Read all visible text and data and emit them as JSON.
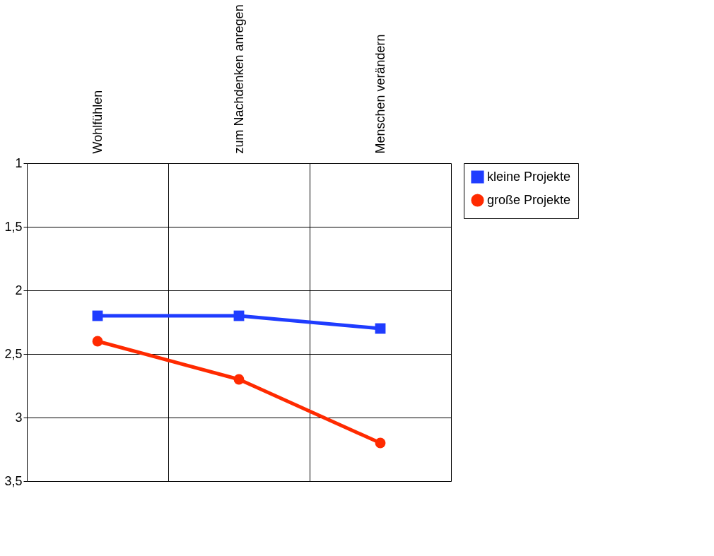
{
  "chart_data": {
    "type": "line",
    "categories": [
      "Wohlfühlen",
      "zum Nachdenken anregen",
      "Menschen verändern"
    ],
    "series": [
      {
        "name": "kleine Projekte",
        "color": "#1f3cff",
        "marker": "square",
        "values": [
          2.2,
          2.2,
          2.3
        ]
      },
      {
        "name": "große Projekte",
        "color": "#ff2a00",
        "marker": "circle",
        "values": [
          2.4,
          2.7,
          3.2
        ]
      }
    ],
    "ylim": [
      3.5,
      1
    ],
    "yticks": [
      {
        "value": 1,
        "label": "1"
      },
      {
        "value": 1.5,
        "label": "1,5"
      },
      {
        "value": 2,
        "label": "2"
      },
      {
        "value": 2.5,
        "label": "2,5"
      },
      {
        "value": 3,
        "label": "3"
      },
      {
        "value": 3.5,
        "label": "3,5"
      }
    ],
    "grid": true,
    "legend": "top right",
    "line_style": "solid"
  }
}
